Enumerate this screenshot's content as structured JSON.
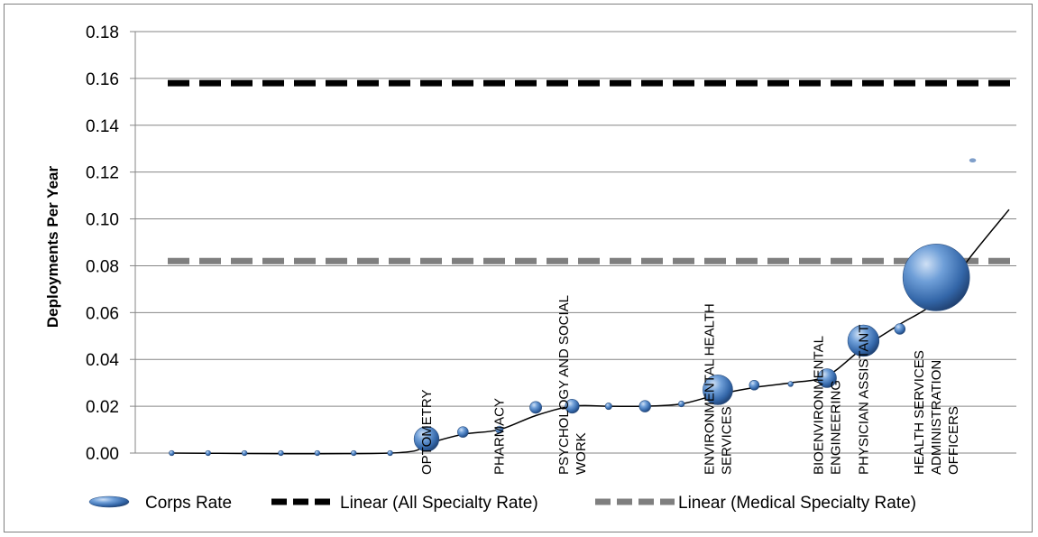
{
  "chart_data": {
    "type": "scatter",
    "subtype": "bubble",
    "title": "",
    "xlabel": "",
    "ylabel": "Deployments Per Year",
    "ylim": [
      0,
      0.18
    ],
    "yticks": [
      "0.00",
      "0.02",
      "0.04",
      "0.06",
      "0.08",
      "0.10",
      "0.12",
      "0.14",
      "0.16",
      "0.18"
    ],
    "grid": true,
    "legend_position": "bottom",
    "series": [
      {
        "name": "Corps Rate",
        "color": "#4f81bd",
        "points": [
          {
            "x": 1,
            "y": 0.0,
            "size": 0.3
          },
          {
            "x": 2,
            "y": 0.0,
            "size": 0.3
          },
          {
            "x": 3,
            "y": 0.0,
            "size": 0.3
          },
          {
            "x": 4,
            "y": 0.0,
            "size": 0.3
          },
          {
            "x": 5,
            "y": 0.0,
            "size": 0.3
          },
          {
            "x": 6,
            "y": 0.0,
            "size": 0.3
          },
          {
            "x": 7,
            "y": 0.0,
            "size": 0.3
          },
          {
            "x": 8,
            "y": 0.006,
            "size": 7
          },
          {
            "x": 9,
            "y": 0.009,
            "size": 1.3
          },
          {
            "x": 10,
            "y": 0.01,
            "size": 0.6
          },
          {
            "x": 11,
            "y": 0.0195,
            "size": 1.6
          },
          {
            "x": 12,
            "y": 0.02,
            "size": 2.2
          },
          {
            "x": 13,
            "y": 0.02,
            "size": 0.5
          },
          {
            "x": 14,
            "y": 0.02,
            "size": 1.5
          },
          {
            "x": 15,
            "y": 0.021,
            "size": 0.4
          },
          {
            "x": 16,
            "y": 0.027,
            "size": 10
          },
          {
            "x": 17,
            "y": 0.029,
            "size": 1.1
          },
          {
            "x": 18,
            "y": 0.0295,
            "size": 0.3
          },
          {
            "x": 19,
            "y": 0.032,
            "size": 4
          },
          {
            "x": 20,
            "y": 0.048,
            "size": 11
          },
          {
            "x": 21,
            "y": 0.053,
            "size": 1.3
          },
          {
            "x": 22,
            "y": 0.075,
            "size": 50
          },
          {
            "x": 23,
            "y": 0.125,
            "size": 0.2
          }
        ]
      },
      {
        "name": "Linear (All Specialty Rate)",
        "color": "#000000",
        "type": "line",
        "style": "dashed",
        "y": 0.158
      },
      {
        "name": "Linear (Medical Specialty Rate)",
        "color": "#7f7f7f",
        "type": "line",
        "style": "dashed",
        "y": 0.082
      }
    ],
    "trend_curve": {
      "color": "#000000",
      "points": [
        [
          1,
          0.0
        ],
        [
          7,
          0.0
        ],
        [
          8,
          0.004
        ],
        [
          9,
          0.008
        ],
        [
          10,
          0.01
        ],
        [
          11,
          0.016
        ],
        [
          12,
          0.02
        ],
        [
          13,
          0.02
        ],
        [
          14,
          0.02
        ],
        [
          15,
          0.021
        ],
        [
          16,
          0.025
        ],
        [
          17,
          0.028
        ],
        [
          18,
          0.03
        ],
        [
          19,
          0.033
        ],
        [
          20,
          0.045
        ],
        [
          21,
          0.055
        ],
        [
          22,
          0.065
        ],
        [
          23,
          0.085
        ],
        [
          24,
          0.104
        ]
      ]
    },
    "annotations": [
      {
        "text": "OPTOMETRY",
        "x": 8
      },
      {
        "text": "PHARMACY",
        "x": 10
      },
      {
        "text": "PSYCHOLOGY AND SOCIAL WORK",
        "x": 12
      },
      {
        "text": "ENVIRONMENTAL HEALTH SERVICES",
        "x": 16
      },
      {
        "text": "BIOENVIRONMENTAL ENGINEERING",
        "x": 19
      },
      {
        "text": "PHYSICIAN ASSISTANT",
        "x": 20
      },
      {
        "text": "HEALTH SERVICES ADMINISTRATION OFFICERS",
        "x": 22
      }
    ],
    "legend": [
      {
        "label": "Corps Rate",
        "symbol": "bubble",
        "color": "#4f81bd"
      },
      {
        "label": "Linear (All Specialty Rate)",
        "symbol": "dashed-line",
        "color": "#000000"
      },
      {
        "label": "Linear (Medical Specialty Rate)",
        "symbol": "dashed-line",
        "color": "#7f7f7f"
      }
    ]
  }
}
